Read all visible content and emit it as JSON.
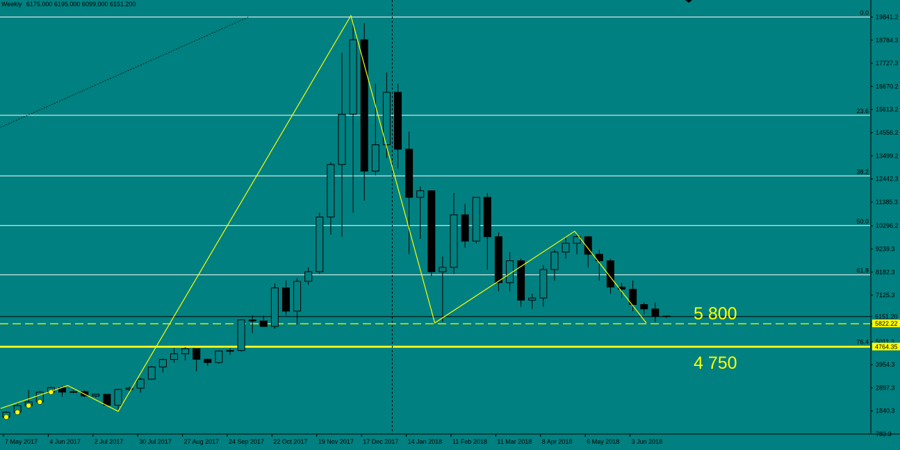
{
  "header": {
    "timeframe": "Weekly",
    "ohlc": "6175.000 6195.000 6099.000 6151.200"
  },
  "annotations": {
    "level_high": "5 800",
    "level_low": "4 750"
  },
  "colors": {
    "background": "#008080",
    "bull_body": "#008080",
    "bear_body": "#000000",
    "outline": "#000000",
    "zigzag": "#ffff00",
    "fib_line": "#ffffff",
    "support": "#ffff00",
    "price_label_bg": "#ffff00"
  },
  "chart_data": {
    "type": "candlestick",
    "title": "",
    "y_range": [
      783.38,
      20300
    ],
    "y_ticks": [
      "19841.2",
      "18784.3",
      "17727.3",
      "16670.2",
      "15613.2",
      "14556.2",
      "13499.2",
      "12442.3",
      "11385.3",
      "10296.2",
      "9239.3",
      "8182.3",
      "7125.3",
      "6151.2",
      "5822.2",
      "5011.3",
      "3954.3",
      "2897.3",
      "1840.3",
      "783.3"
    ],
    "y_tick_values": [
      19841.2,
      18784.3,
      17727.3,
      16670.2,
      15613.2,
      14556.2,
      13499.2,
      12442.3,
      11385.3,
      10296.2,
      9239.3,
      8182.3,
      7125.3,
      6151.2,
      5822.2,
      5011.3,
      3954.3,
      2897.3,
      1840.3,
      783.3
    ],
    "x_labels": [
      "7 May 2017",
      "4 Jun 2017",
      "2 Jul 2017",
      "30 Jul 2017",
      "27 Aug 2017",
      "24 Sep 2017",
      "22 Oct 2017",
      "19 Nov 2017",
      "17 Dec 2017",
      "14 Jan 2018",
      "11 Feb 2018",
      "11 Mar 2018",
      "8 Apr 2018",
      "6 May 2018",
      "3 Jun 2018"
    ],
    "x_label_index": [
      0,
      4,
      8,
      12,
      16,
      20,
      24,
      28,
      32,
      36,
      40,
      44,
      48,
      52,
      56
    ],
    "candles": [
      {
        "o": 1560,
        "h": 1830,
        "l": 1540,
        "c": 1780
      },
      {
        "o": 1780,
        "h": 2220,
        "l": 1700,
        "c": 2080
      },
      {
        "o": 2080,
        "h": 2800,
        "l": 2000,
        "c": 2250
      },
      {
        "o": 2250,
        "h": 2760,
        "l": 2200,
        "c": 2700
      },
      {
        "o": 2700,
        "h": 2950,
        "l": 2600,
        "c": 2900
      },
      {
        "o": 2900,
        "h": 2990,
        "l": 2490,
        "c": 2700
      },
      {
        "o": 2700,
        "h": 2800,
        "l": 2650,
        "c": 2720
      },
      {
        "o": 2720,
        "h": 2780,
        "l": 2480,
        "c": 2520
      },
      {
        "o": 2520,
        "h": 2600,
        "l": 2450,
        "c": 2600
      },
      {
        "o": 2600,
        "h": 2560,
        "l": 2050,
        "c": 2100
      },
      {
        "o": 2100,
        "h": 2850,
        "l": 1900,
        "c": 2820
      },
      {
        "o": 2820,
        "h": 2960,
        "l": 2750,
        "c": 2880
      },
      {
        "o": 2880,
        "h": 3350,
        "l": 2680,
        "c": 3290
      },
      {
        "o": 3290,
        "h": 3900,
        "l": 3250,
        "c": 3850
      },
      {
        "o": 3850,
        "h": 4230,
        "l": 3600,
        "c": 4190
      },
      {
        "o": 4190,
        "h": 4700,
        "l": 4050,
        "c": 4450
      },
      {
        "o": 4450,
        "h": 4750,
        "l": 4150,
        "c": 4680
      },
      {
        "o": 4680,
        "h": 4600,
        "l": 3650,
        "c": 4200
      },
      {
        "o": 4200,
        "h": 4230,
        "l": 3900,
        "c": 4050
      },
      {
        "o": 4050,
        "h": 4600,
        "l": 4000,
        "c": 4580
      },
      {
        "o": 4580,
        "h": 4700,
        "l": 4400,
        "c": 4600
      },
      {
        "o": 4600,
        "h": 6030,
        "l": 4550,
        "c": 6000
      },
      {
        "o": 6000,
        "h": 6200,
        "l": 5400,
        "c": 5950
      },
      {
        "o": 5950,
        "h": 6190,
        "l": 5800,
        "c": 5700
      },
      {
        "o": 5700,
        "h": 7660,
        "l": 5600,
        "c": 7460
      },
      {
        "o": 7460,
        "h": 7800,
        "l": 6200,
        "c": 6400
      },
      {
        "o": 6400,
        "h": 7900,
        "l": 5800,
        "c": 7760
      },
      {
        "o": 7760,
        "h": 8400,
        "l": 7600,
        "c": 8200
      },
      {
        "o": 8200,
        "h": 10900,
        "l": 8100,
        "c": 10700
      },
      {
        "o": 10700,
        "h": 13200,
        "l": 9900,
        "c": 13100
      },
      {
        "o": 13100,
        "h": 18200,
        "l": 9800,
        "c": 15400
      },
      {
        "o": 15400,
        "h": 19600,
        "l": 10900,
        "c": 18800
      },
      {
        "o": 18800,
        "h": 19550,
        "l": 11450,
        "c": 12800
      },
      {
        "o": 12800,
        "h": 16800,
        "l": 12600,
        "c": 14000
      },
      {
        "o": 14000,
        "h": 17300,
        "l": 13400,
        "c": 16400
      },
      {
        "o": 16400,
        "h": 16800,
        "l": 12900,
        "c": 13800
      },
      {
        "o": 13800,
        "h": 14600,
        "l": 9000,
        "c": 11600
      },
      {
        "o": 11600,
        "h": 12100,
        "l": 9700,
        "c": 11900
      },
      {
        "o": 11900,
        "h": 11900,
        "l": 8000,
        "c": 8200
      },
      {
        "o": 8200,
        "h": 8900,
        "l": 5900,
        "c": 8400
      },
      {
        "o": 8400,
        "h": 11800,
        "l": 8100,
        "c": 10800
      },
      {
        "o": 10800,
        "h": 11300,
        "l": 9300,
        "c": 9600
      },
      {
        "o": 9600,
        "h": 11600,
        "l": 9500,
        "c": 11600
      },
      {
        "o": 11600,
        "h": 11800,
        "l": 8300,
        "c": 9800
      },
      {
        "o": 9800,
        "h": 10000,
        "l": 7300,
        "c": 7700
      },
      {
        "o": 7700,
        "h": 9100,
        "l": 7300,
        "c": 8700
      },
      {
        "o": 8700,
        "h": 8800,
        "l": 6600,
        "c": 6900
      },
      {
        "o": 6900,
        "h": 7200,
        "l": 6500,
        "c": 7000
      },
      {
        "o": 7000,
        "h": 8500,
        "l": 6600,
        "c": 8300
      },
      {
        "o": 8300,
        "h": 9200,
        "l": 7800,
        "c": 9100
      },
      {
        "o": 9100,
        "h": 9800,
        "l": 8800,
        "c": 9500
      },
      {
        "o": 9500,
        "h": 9900,
        "l": 9000,
        "c": 9800
      },
      {
        "o": 9800,
        "h": 9800,
        "l": 8400,
        "c": 9000
      },
      {
        "o": 9000,
        "h": 9200,
        "l": 7800,
        "c": 8700
      },
      {
        "o": 8700,
        "h": 8800,
        "l": 7200,
        "c": 7500
      },
      {
        "o": 7500,
        "h": 7700,
        "l": 7000,
        "c": 7400
      },
      {
        "o": 7400,
        "h": 7800,
        "l": 6400,
        "c": 6700
      },
      {
        "o": 6700,
        "h": 6800,
        "l": 6250,
        "c": 6500
      },
      {
        "o": 6500,
        "h": 6800,
        "l": 5900,
        "c": 6175
      },
      {
        "o": 6175,
        "h": 6195,
        "l": 6099,
        "c": 6151.2
      }
    ],
    "fib_levels": [
      {
        "label": "0.0",
        "value": 19841.2
      },
      {
        "label": "23.6",
        "value": 15350
      },
      {
        "label": "38.2",
        "value": 12580
      },
      {
        "label": "50.0",
        "value": 10310
      },
      {
        "label": "61.8",
        "value": 8060
      },
      {
        "label": "76.4",
        "value": 4800
      }
    ],
    "current_price": {
      "label": "6151.20",
      "value": 6151.2
    },
    "support_dashed": {
      "label": "5822.22",
      "value": 5822.22
    },
    "support_solid": {
      "label": "4764.35",
      "value": 4764.35
    },
    "zigzag": [
      {
        "i": -0.5,
        "v": 1950
      },
      {
        "i": 5.5,
        "v": 3000
      },
      {
        "i": 10,
        "v": 1820
      },
      {
        "i": 30.8,
        "v": 19900
      },
      {
        "i": 38.3,
        "v": 5860
      },
      {
        "i": 50.8,
        "v": 10050
      },
      {
        "i": 57.2,
        "v": 5860
      }
    ],
    "trendline": [
      {
        "i": -0.5,
        "v": 14800
      },
      {
        "i": 21.7,
        "v": 19850
      }
    ],
    "vertical_marker_index": 34.5,
    "markers": [
      0,
      1,
      2,
      3,
      4
    ]
  }
}
